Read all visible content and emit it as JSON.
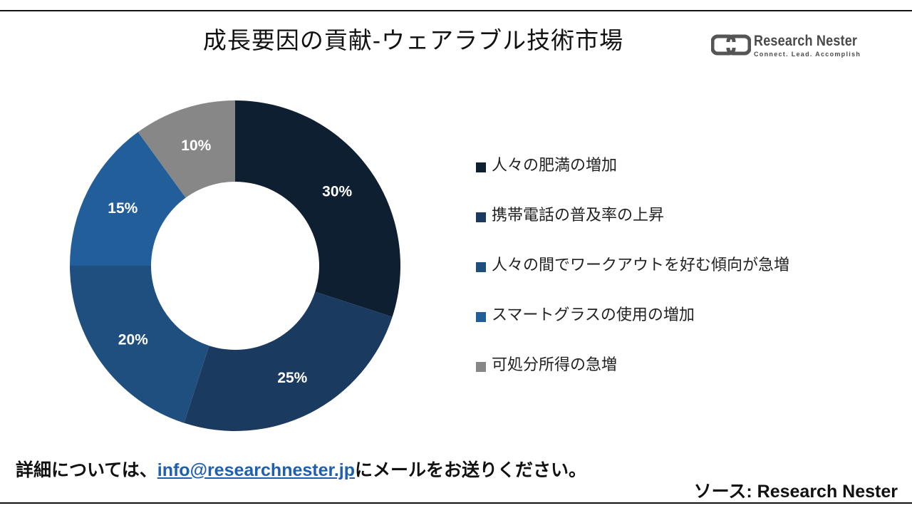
{
  "header": {
    "title": "成長要因の貢献-ウェアラブル技術市場"
  },
  "logo": {
    "name": "Research Nester",
    "tagline": "Connect. Lead. Accomplish"
  },
  "chart_data": {
    "type": "pie",
    "donut": true,
    "title": "",
    "slices": [
      {
        "label": "人々の肥満の増加",
        "value": 30,
        "display": "30%",
        "color": "#0d1f30"
      },
      {
        "label": "携帯電話の普及率の上昇",
        "value": 25,
        "display": "25%",
        "color": "#1a3a60"
      },
      {
        "label": "人々の間でワークアウトを好む傾向が急増",
        "value": 20,
        "display": "20%",
        "color": "#1f4f7e"
      },
      {
        "label": "スマートグラスの使用の増加",
        "value": 15,
        "display": "15%",
        "color": "#225f9a"
      },
      {
        "label": "可処分所得の急増",
        "value": 10,
        "display": "10%",
        "color": "#878787"
      }
    ],
    "legend_position": "right",
    "data_label_color": "#ffffff"
  },
  "footer": {
    "note_prefix": "詳細については、",
    "email": "info@researchnester.jp",
    "note_suffix": "にメールをお送りください。",
    "source": "ソース: Research Nester"
  }
}
